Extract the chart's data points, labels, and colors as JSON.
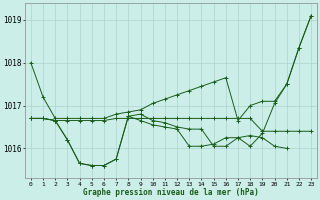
{
  "title": "Graphe pression niveau de la mer (hPa)",
  "background_color": "#cceee8",
  "grid_color": "#aad4cc",
  "line_color": "#1a5c1a",
  "xlim": [
    -0.5,
    23.5
  ],
  "ylim": [
    1015.3,
    1019.4
  ],
  "yticks": [
    1016,
    1017,
    1018,
    1019
  ],
  "xtick_labels": [
    "0",
    "1",
    "2",
    "3",
    "4",
    "5",
    "6",
    "7",
    "8",
    "9",
    "10",
    "11",
    "12",
    "13",
    "14",
    "15",
    "16",
    "17",
    "18",
    "19",
    "20",
    "21",
    "22",
    "23"
  ],
  "series": [
    [
      1018.0,
      1017.2,
      1016.7,
      1016.7,
      1016.7,
      1016.7,
      1016.7,
      1016.8,
      1016.85,
      1016.9,
      1017.05,
      1017.15,
      1017.25,
      1017.35,
      1017.45,
      1017.55,
      1017.65,
      1016.65,
      1017.0,
      1017.1,
      1017.1,
      1017.5,
      1018.35,
      1019.1
    ],
    [
      1016.7,
      1016.7,
      1016.65,
      1016.2,
      1015.65,
      1015.6,
      1015.6,
      1015.75,
      1016.75,
      1016.8,
      1016.65,
      1016.6,
      1016.5,
      1016.45,
      1016.45,
      1016.05,
      1016.05,
      1016.25,
      1016.3,
      1016.25,
      1016.05,
      1016.0,
      null,
      null
    ],
    [
      1016.7,
      1016.7,
      1016.65,
      1016.65,
      1016.65,
      1016.65,
      1016.65,
      1016.7,
      1016.7,
      1016.7,
      1016.7,
      1016.7,
      1016.7,
      1016.7,
      1016.7,
      1016.7,
      1016.7,
      1016.7,
      1016.7,
      1016.4,
      1016.4,
      1016.4,
      1016.4,
      1016.4
    ],
    [
      1016.7,
      1016.7,
      1016.65,
      1016.2,
      1015.65,
      1015.6,
      1015.6,
      1015.75,
      1016.75,
      1016.65,
      1016.55,
      1016.5,
      1016.45,
      1016.05,
      1016.05,
      1016.1,
      1016.25,
      1016.25,
      1016.05,
      1016.35,
      1017.05,
      1017.5,
      1018.35,
      1019.1
    ]
  ]
}
